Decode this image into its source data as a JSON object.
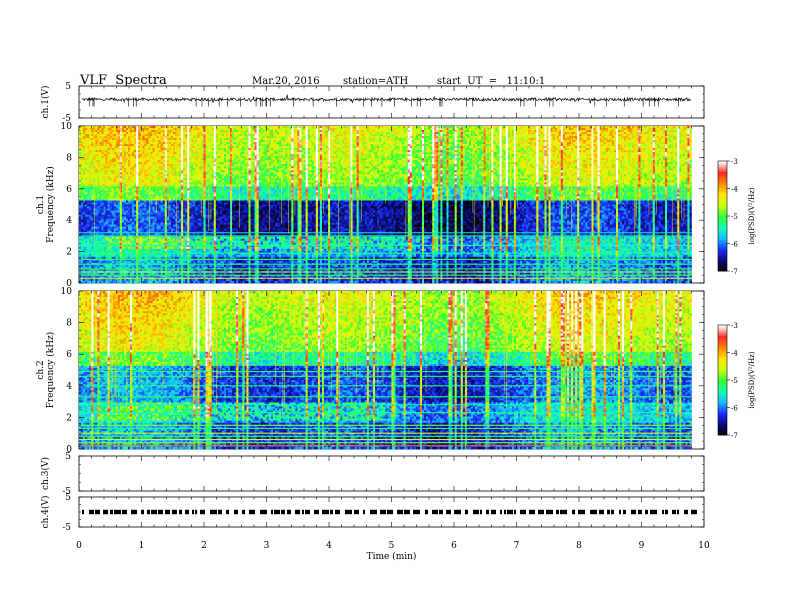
{
  "header": {
    "title": "VLF  Spectra",
    "date": "Mar.20, 2016",
    "station": "station=ATH",
    "start": "start  UT  =   11:10:1"
  },
  "chart_data": [
    {
      "type": "line",
      "panel": "ch1-waveform",
      "ylabel": "ch.1(V)",
      "ylim": [
        -5,
        5
      ],
      "yticks": [
        "5",
        "-5"
      ],
      "xlim": [
        0,
        10
      ],
      "trace_start_min": 0.05,
      "trace_end_min": 9.8,
      "baseline_v": 0.8
    },
    {
      "type": "heatmap",
      "panel": "ch1-spectrogram",
      "ylabel_lines": [
        "ch.1",
        "Frequency  (kHz)"
      ],
      "ylim": [
        0,
        10
      ],
      "yticks": [
        "0",
        "2",
        "4",
        "6",
        "8",
        "10"
      ],
      "xlim": [
        0,
        10
      ],
      "data_end_min": 9.8,
      "colorbar": {
        "label": "log(PSD)(V²/Hz)",
        "range": [
          -7,
          -3
        ],
        "ticks": [
          "-3",
          "-4",
          "-5",
          "-6",
          "-7"
        ]
      }
    },
    {
      "type": "heatmap",
      "panel": "ch2-spectrogram",
      "ylabel_lines": [
        "ch.2",
        "Frequency  (kHz)"
      ],
      "ylim": [
        0,
        10
      ],
      "yticks": [
        "0",
        "2",
        "4",
        "6",
        "8",
        "10"
      ],
      "xlim": [
        0,
        10
      ],
      "data_end_min": 9.8,
      "colorbar": {
        "label": "log(PSD)(V²/Hz)",
        "range": [
          -7,
          -3
        ],
        "ticks": [
          "-3",
          "-4",
          "-5",
          "-6",
          "-7"
        ]
      }
    },
    {
      "type": "line",
      "panel": "ch3-waveform",
      "ylabel": "ch.3(V)",
      "ylim": [
        -5,
        5
      ],
      "yticks": [
        "5",
        "-5"
      ],
      "xlim": [
        0,
        10
      ]
    },
    {
      "type": "line",
      "panel": "ch4-waveform",
      "ylabel": "ch.4(V)",
      "ylim": [
        -5,
        5
      ],
      "yticks": [
        "5",
        "-5"
      ],
      "xlim": [
        0,
        10
      ],
      "trace_style": "dashed",
      "baseline_v": 0.0
    }
  ],
  "xaxis": {
    "label": "Time  (min)",
    "ticks": [
      "0",
      "1",
      "2",
      "3",
      "4",
      "5",
      "6",
      "7",
      "8",
      "9",
      "10"
    ]
  },
  "colors": {
    "cmap": [
      "#000000",
      "#0a0a7a",
      "#1a2cff",
      "#15b8ff",
      "#14ffb4",
      "#33ff33",
      "#c8ff14",
      "#ffe600",
      "#ff8800",
      "#ff2b2b",
      "#ffffff"
    ]
  }
}
